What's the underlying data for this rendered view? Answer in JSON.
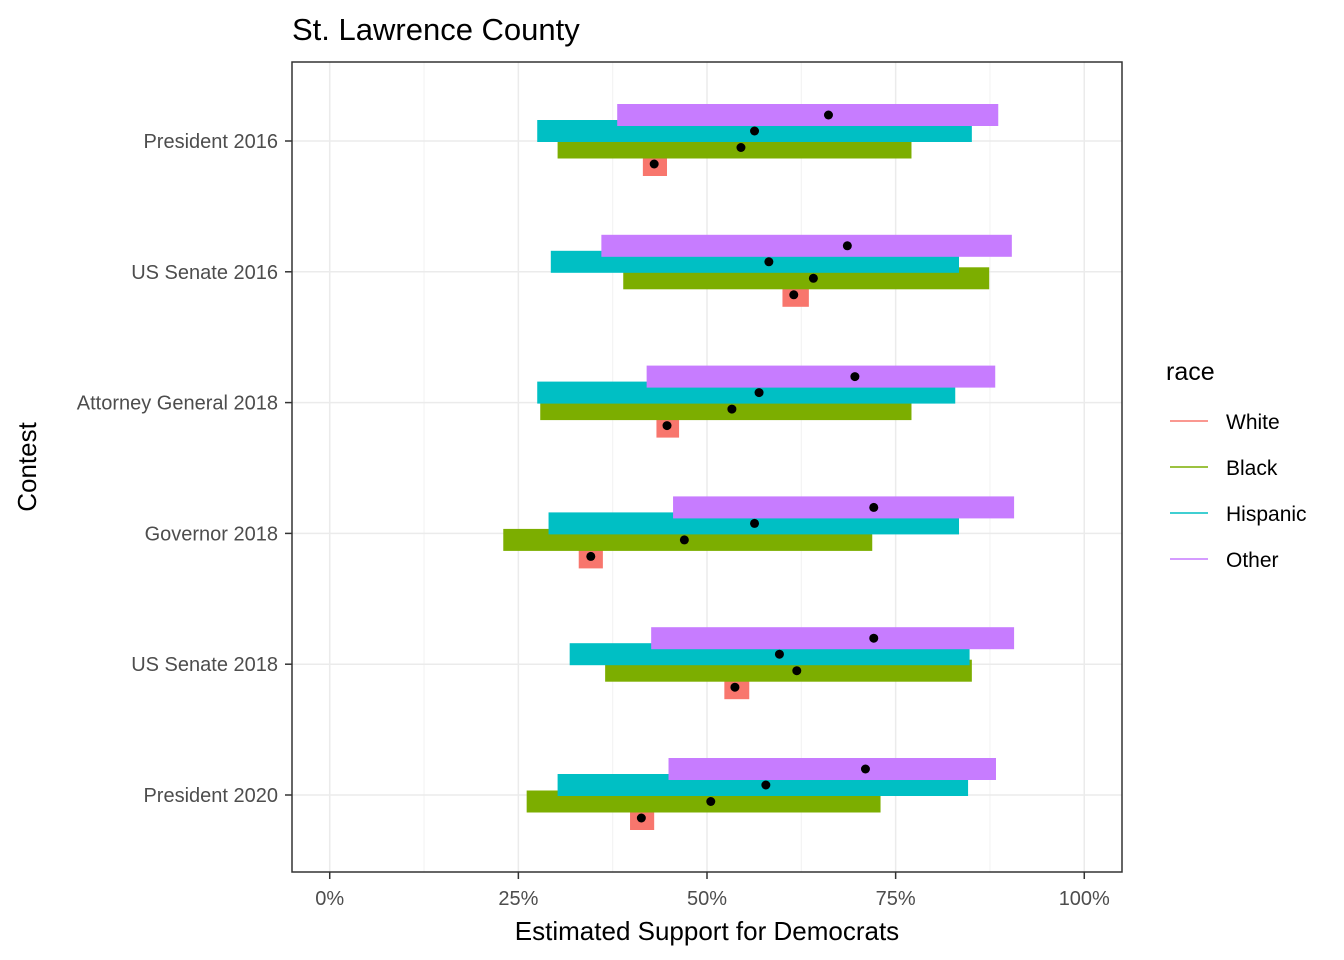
{
  "chart_data": {
    "type": "range-bar",
    "title": "St. Lawrence County",
    "xlabel": "Estimated Support for Democrats",
    "ylabel": "Contest",
    "xlim": [
      -0.05,
      1.05
    ],
    "xticks": [
      0,
      0.25,
      0.5,
      0.75,
      1.0
    ],
    "xtick_labels": [
      "0%",
      "25%",
      "50%",
      "75%",
      "100%"
    ],
    "categories": [
      "President 2016",
      "US Senate 2016",
      "Attorney General 2018",
      "Governor 2018",
      "US Senate 2018",
      "President 2020"
    ],
    "legend_title": "race",
    "legend_position": "right",
    "grid": true,
    "series": [
      {
        "name": "White",
        "color": "#F8766D",
        "low": [
          0.415,
          0.6,
          0.433,
          0.33,
          0.523,
          0.398
        ],
        "high": [
          0.447,
          0.635,
          0.463,
          0.362,
          0.556,
          0.43
        ],
        "estimate": [
          0.43,
          0.615,
          0.447,
          0.346,
          0.537,
          0.413
        ]
      },
      {
        "name": "Black",
        "color": "#7CAE00",
        "low": [
          0.302,
          0.389,
          0.279,
          0.23,
          0.365,
          0.261
        ],
        "high": [
          0.771,
          0.874,
          0.771,
          0.719,
          0.851,
          0.73
        ],
        "estimate": [
          0.545,
          0.641,
          0.533,
          0.47,
          0.619,
          0.505
        ]
      },
      {
        "name": "Hispanic",
        "color": "#00BFC4",
        "low": [
          0.275,
          0.293,
          0.275,
          0.29,
          0.318,
          0.302
        ],
        "high": [
          0.851,
          0.834,
          0.829,
          0.834,
          0.848,
          0.846
        ],
        "estimate": [
          0.563,
          0.582,
          0.569,
          0.563,
          0.596,
          0.578
        ]
      },
      {
        "name": "Other",
        "color": "#C77CFF",
        "low": [
          0.381,
          0.36,
          0.42,
          0.455,
          0.426,
          0.449
        ],
        "high": [
          0.886,
          0.904,
          0.882,
          0.907,
          0.907,
          0.883
        ],
        "estimate": [
          0.661,
          0.686,
          0.696,
          0.721,
          0.721,
          0.71
        ]
      }
    ]
  }
}
